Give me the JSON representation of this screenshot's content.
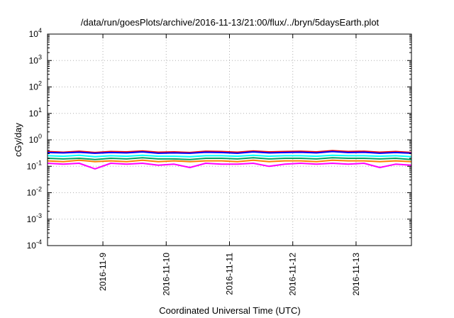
{
  "chart_data": {
    "type": "line",
    "title": "/data/run/goesPlots/archive/2016-11-13/21:00/flux/../bryn/5daysEarth.plot",
    "xlabel": "Coordinated Universal Time (UTC)",
    "ylabel": "cGy/day",
    "yscale": "log",
    "ylim": [
      0.0001,
      10000
    ],
    "xlim": [
      "2016-11-08 03:00",
      "2016-11-13 21:00"
    ],
    "grid": true,
    "x_ticks": [
      {
        "label": "2016-11-9",
        "at": "2016-11-09 00:00"
      },
      {
        "label": "2016-11-10",
        "at": "2016-11-10 00:00"
      },
      {
        "label": "2016-11-11",
        "at": "2016-11-11 00:00"
      },
      {
        "label": "2016-11-12",
        "at": "2016-11-12 00:00"
      },
      {
        "label": "2016-11-13",
        "at": "2016-11-13 00:00"
      }
    ],
    "y_ticks": [
      {
        "base": "10",
        "exp": "-4",
        "value": 0.0001
      },
      {
        "base": "10",
        "exp": "-3",
        "value": 0.001
      },
      {
        "base": "10",
        "exp": "-2",
        "value": 0.01
      },
      {
        "base": "10",
        "exp": "-1",
        "value": 0.1
      },
      {
        "base": "10",
        "exp": "0",
        "value": 1
      },
      {
        "base": "10",
        "exp": "1",
        "value": 10
      },
      {
        "base": "10",
        "exp": "2",
        "value": 100
      },
      {
        "base": "10",
        "exp": "3",
        "value": 1000
      },
      {
        "base": "10",
        "exp": "4",
        "value": 10000
      }
    ],
    "x": [
      "2016-11-08 03:00",
      "2016-11-08 09:00",
      "2016-11-08 15:00",
      "2016-11-08 21:00",
      "2016-11-09 03:00",
      "2016-11-09 09:00",
      "2016-11-09 15:00",
      "2016-11-09 21:00",
      "2016-11-10 03:00",
      "2016-11-10 09:00",
      "2016-11-10 15:00",
      "2016-11-10 21:00",
      "2016-11-11 03:00",
      "2016-11-11 09:00",
      "2016-11-11 15:00",
      "2016-11-11 21:00",
      "2016-11-12 03:00",
      "2016-11-12 09:00",
      "2016-11-12 15:00",
      "2016-11-12 21:00",
      "2016-11-13 03:00",
      "2016-11-13 09:00",
      "2016-11-13 15:00",
      "2016-11-13 21:00"
    ],
    "series": [
      {
        "color": "#ff0000",
        "values": [
          0.36,
          0.34,
          0.37,
          0.33,
          0.36,
          0.35,
          0.38,
          0.34,
          0.35,
          0.33,
          0.37,
          0.36,
          0.34,
          0.38,
          0.35,
          0.36,
          0.37,
          0.35,
          0.39,
          0.36,
          0.37,
          0.34,
          0.36,
          0.33
        ]
      },
      {
        "color": "#0000ff",
        "values": [
          0.33,
          0.32,
          0.34,
          0.31,
          0.33,
          0.32,
          0.35,
          0.31,
          0.32,
          0.31,
          0.34,
          0.33,
          0.31,
          0.35,
          0.32,
          0.33,
          0.34,
          0.32,
          0.36,
          0.33,
          0.34,
          0.31,
          0.33,
          0.31
        ]
      },
      {
        "color": "#00ffff",
        "values": [
          0.25,
          0.24,
          0.26,
          0.23,
          0.25,
          0.24,
          0.26,
          0.24,
          0.24,
          0.23,
          0.25,
          0.25,
          0.24,
          0.26,
          0.24,
          0.25,
          0.25,
          0.24,
          0.26,
          0.25,
          0.25,
          0.24,
          0.25,
          0.23
        ]
      },
      {
        "color": "#00a060",
        "values": [
          0.2,
          0.19,
          0.2,
          0.18,
          0.2,
          0.19,
          0.21,
          0.19,
          0.19,
          0.18,
          0.2,
          0.2,
          0.19,
          0.21,
          0.19,
          0.2,
          0.2,
          0.19,
          0.21,
          0.2,
          0.2,
          0.19,
          0.2,
          0.18
        ]
      },
      {
        "color": "#ff8000",
        "values": [
          0.16,
          0.15,
          0.17,
          0.15,
          0.16,
          0.15,
          0.17,
          0.15,
          0.16,
          0.15,
          0.16,
          0.16,
          0.15,
          0.17,
          0.15,
          0.16,
          0.16,
          0.15,
          0.17,
          0.16,
          0.16,
          0.15,
          0.16,
          0.15
        ]
      },
      {
        "color": "#ff00ff",
        "values": [
          0.13,
          0.12,
          0.13,
          0.08,
          0.13,
          0.12,
          0.13,
          0.11,
          0.12,
          0.09,
          0.13,
          0.12,
          0.12,
          0.13,
          0.1,
          0.12,
          0.13,
          0.12,
          0.13,
          0.12,
          0.13,
          0.09,
          0.12,
          0.11
        ]
      }
    ]
  }
}
